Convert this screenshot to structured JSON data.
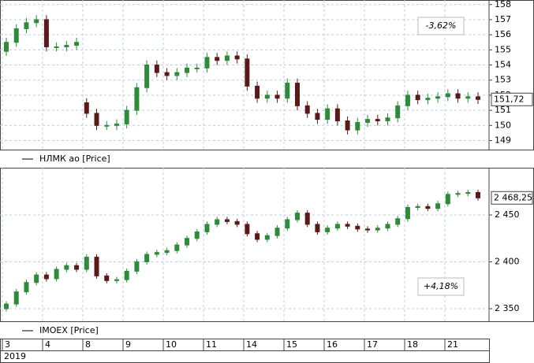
{
  "chart_data": [
    {
      "type": "candlestick",
      "annotation": "-3,62%",
      "annotation_color": "#d42020",
      "ylim": [
        148.4,
        158.3
      ],
      "yticks": [
        149,
        150,
        151,
        152,
        153,
        154,
        155,
        156,
        157,
        158
      ],
      "grid": true,
      "last_price": {
        "value": 151.72,
        "label": "151,72"
      },
      "series": [
        {
          "name": "НЛМК ао [Price]",
          "up_color": "#2e8b3a",
          "down_color": "#5a1a1a",
          "open": [
            154.9,
            155.5,
            156.4,
            156.8,
            157.0,
            155.2,
            155.2,
            155.3,
            151.5,
            150.8,
            150.0,
            150.0,
            150.1,
            151.0,
            152.5,
            154.0,
            153.5,
            153.3,
            153.5,
            153.8,
            153.8,
            154.5,
            154.3,
            154.6,
            154.4,
            152.6,
            151.8,
            152.0,
            151.8,
            152.8,
            151.3,
            150.8,
            150.4,
            151.1,
            150.3,
            149.7,
            150.2,
            150.4,
            150.3,
            150.5,
            151.3,
            152.0,
            151.7,
            151.8,
            151.9,
            152.1,
            151.8,
            151.9
          ],
          "high": [
            155.8,
            156.7,
            157.1,
            157.3,
            157.3,
            155.5,
            155.6,
            155.8,
            151.8,
            151.1,
            150.3,
            150.4,
            151.3,
            152.8,
            154.3,
            154.3,
            153.8,
            153.8,
            154.1,
            154.1,
            154.8,
            154.8,
            154.9,
            154.9,
            154.7,
            152.9,
            152.3,
            152.3,
            153.1,
            153.1,
            151.6,
            151.1,
            151.4,
            151.4,
            150.6,
            150.5,
            150.7,
            150.7,
            150.8,
            151.6,
            152.3,
            152.3,
            152.1,
            152.2,
            152.4,
            152.4,
            152.2,
            152.2
          ],
          "low": [
            154.6,
            155.2,
            156.1,
            156.5,
            154.9,
            154.9,
            154.9,
            155.0,
            150.5,
            149.7,
            149.7,
            149.7,
            149.8,
            150.7,
            152.2,
            153.2,
            153.0,
            153.0,
            153.2,
            153.5,
            153.5,
            154.0,
            154.0,
            154.1,
            152.3,
            151.5,
            151.5,
            151.5,
            151.5,
            151.0,
            150.5,
            150.1,
            150.1,
            150.0,
            149.4,
            149.4,
            149.9,
            150.0,
            150.0,
            150.2,
            151.0,
            151.4,
            151.4,
            151.5,
            151.6,
            151.5,
            151.5,
            151.42
          ],
          "close": [
            155.5,
            156.4,
            156.8,
            157.0,
            155.2,
            155.2,
            155.3,
            155.5,
            150.8,
            150.0,
            150.0,
            150.1,
            151.0,
            152.5,
            154.0,
            153.5,
            153.3,
            153.5,
            153.8,
            153.8,
            154.5,
            154.3,
            154.6,
            154.4,
            152.6,
            151.8,
            152.0,
            151.8,
            152.8,
            151.3,
            150.8,
            150.4,
            151.1,
            150.3,
            149.7,
            150.2,
            150.4,
            150.3,
            150.5,
            151.3,
            152.0,
            151.7,
            151.8,
            151.9,
            152.1,
            151.8,
            151.9,
            151.72
          ]
        }
      ]
    },
    {
      "type": "candlestick",
      "annotation": "+4,18%",
      "annotation_color": "#1e9a2e",
      "ylim": [
        2336.6,
        2500.4
      ],
      "yticks": [
        {
          "value": 2350,
          "label": "2 350"
        },
        {
          "value": 2400,
          "label": "2 400"
        },
        {
          "value": 2450,
          "label": "2 450"
        }
      ],
      "grid": true,
      "last_price": {
        "value": 2468.25,
        "label": "2 468,25"
      },
      "categories": [
        "3",
        "4",
        "8",
        "9",
        "10",
        "11",
        "14",
        "15",
        "16",
        "17",
        "18",
        "21"
      ],
      "year": "2019",
      "series": [
        {
          "name": "IMOEX [Price]",
          "up_color": "#2e8b3a",
          "down_color": "#5a1a1a",
          "open": [
            2350,
            2355,
            2368,
            2378,
            2386,
            2382,
            2392,
            2396,
            2392,
            2405,
            2385,
            2380,
            2381,
            2390,
            2400,
            2408,
            2410,
            2412,
            2418,
            2425,
            2432,
            2440,
            2445,
            2443,
            2440,
            2430,
            2424,
            2428,
            2436,
            2445,
            2452,
            2440,
            2432,
            2436,
            2440,
            2438,
            2435,
            2434,
            2436,
            2440,
            2446,
            2458,
            2459,
            2457,
            2462,
            2472,
            2473,
            2474
          ],
          "high": [
            2358,
            2371,
            2381,
            2389,
            2389,
            2395,
            2399,
            2399,
            2408,
            2408,
            2388,
            2384,
            2393,
            2403,
            2411,
            2413,
            2415,
            2421,
            2428,
            2435,
            2443,
            2448,
            2448,
            2446,
            2443,
            2433,
            2431,
            2439,
            2448,
            2455,
            2455,
            2443,
            2439,
            2443,
            2443,
            2441,
            2438,
            2439,
            2443,
            2449,
            2461,
            2462,
            2462,
            2465,
            2475,
            2476,
            2477,
            2477
          ],
          "low": [
            2347,
            2352,
            2365,
            2375,
            2379,
            2379,
            2389,
            2389,
            2389,
            2382,
            2377,
            2377,
            2378,
            2387,
            2397,
            2405,
            2407,
            2409,
            2415,
            2422,
            2429,
            2437,
            2440,
            2437,
            2427,
            2421,
            2421,
            2425,
            2433,
            2442,
            2437,
            2429,
            2429,
            2433,
            2435,
            2432,
            2431,
            2431,
            2433,
            2437,
            2443,
            2455,
            2454,
            2454,
            2459,
            2469,
            2470,
            2465.25
          ],
          "close": [
            2355,
            2368,
            2378,
            2386,
            2382,
            2392,
            2396,
            2392,
            2405,
            2385,
            2380,
            2381,
            2390,
            2400,
            2408,
            2410,
            2412,
            2418,
            2425,
            2432,
            2440,
            2445,
            2443,
            2440,
            2430,
            2424,
            2428,
            2436,
            2445,
            2452,
            2440,
            2432,
            2436,
            2440,
            2438,
            2435,
            2434,
            2436,
            2440,
            2446,
            2458,
            2459,
            2457,
            2462,
            2472,
            2473,
            2474,
            2468.25
          ]
        }
      ]
    }
  ]
}
